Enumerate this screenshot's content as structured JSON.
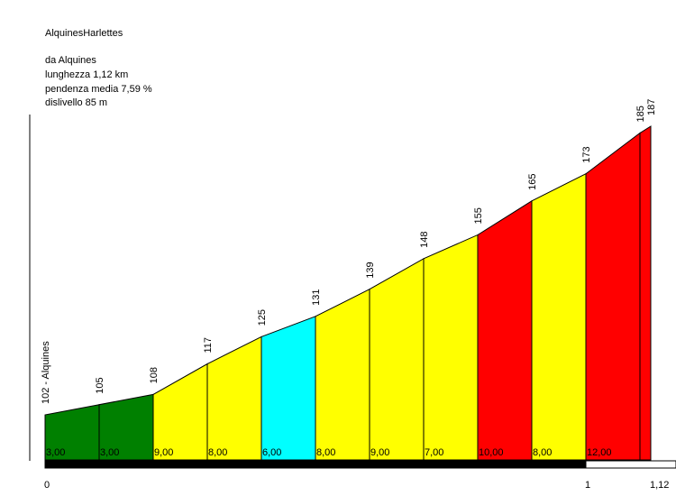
{
  "header": {
    "title": "AlquinesHarlettes",
    "from": "da Alquines",
    "length": "lunghezza 1,12 km",
    "avg_gradient": "pendenza media 7,59 %",
    "elevation_gain": "dislivello 85 m"
  },
  "colors": {
    "green": "#008000",
    "yellow": "#ffff00",
    "cyan": "#00ffff",
    "red": "#ff0000",
    "black": "#000000"
  },
  "chart_data": {
    "type": "area",
    "xlabel": "",
    "ylabel": "",
    "x_ticks": [
      "0",
      "1",
      "1,12"
    ],
    "xlim": [
      0,
      1.12
    ],
    "ylim": [
      85,
      190
    ],
    "start_label": "102 - Alquines",
    "points": [
      {
        "x": 0.0,
        "y": 102,
        "label": "102 - Alquines"
      },
      {
        "x": 0.1,
        "y": 105,
        "label": "105"
      },
      {
        "x": 0.2,
        "y": 108,
        "label": "108"
      },
      {
        "x": 0.3,
        "y": 117,
        "label": "117"
      },
      {
        "x": 0.4,
        "y": 125,
        "label": "125"
      },
      {
        "x": 0.5,
        "y": 131,
        "label": "131"
      },
      {
        "x": 0.6,
        "y": 139,
        "label": "139"
      },
      {
        "x": 0.7,
        "y": 148,
        "label": "148"
      },
      {
        "x": 0.8,
        "y": 155,
        "label": "155"
      },
      {
        "x": 0.9,
        "y": 165,
        "label": "165"
      },
      {
        "x": 1.0,
        "y": 173,
        "label": "173"
      },
      {
        "x": 1.1,
        "y": 185,
        "label": "185"
      },
      {
        "x": 1.12,
        "y": 187,
        "label": "187"
      }
    ],
    "segments": [
      {
        "gradient": "3,00",
        "color": "green"
      },
      {
        "gradient": "3,00",
        "color": "green"
      },
      {
        "gradient": "9,00",
        "color": "yellow"
      },
      {
        "gradient": "8,00",
        "color": "yellow"
      },
      {
        "gradient": "6,00",
        "color": "cyan"
      },
      {
        "gradient": "8,00",
        "color": "yellow"
      },
      {
        "gradient": "9,00",
        "color": "yellow"
      },
      {
        "gradient": "7,00",
        "color": "yellow"
      },
      {
        "gradient": "10,00",
        "color": "red"
      },
      {
        "gradient": "8,00",
        "color": "yellow"
      },
      {
        "gradient": "12,00",
        "color": "red"
      },
      {
        "gradient": "",
        "color": "red"
      }
    ],
    "km_bar": [
      {
        "from": 0,
        "to": 1,
        "color": "black"
      },
      {
        "from": 1,
        "to": 1.12,
        "color": "white"
      }
    ]
  }
}
